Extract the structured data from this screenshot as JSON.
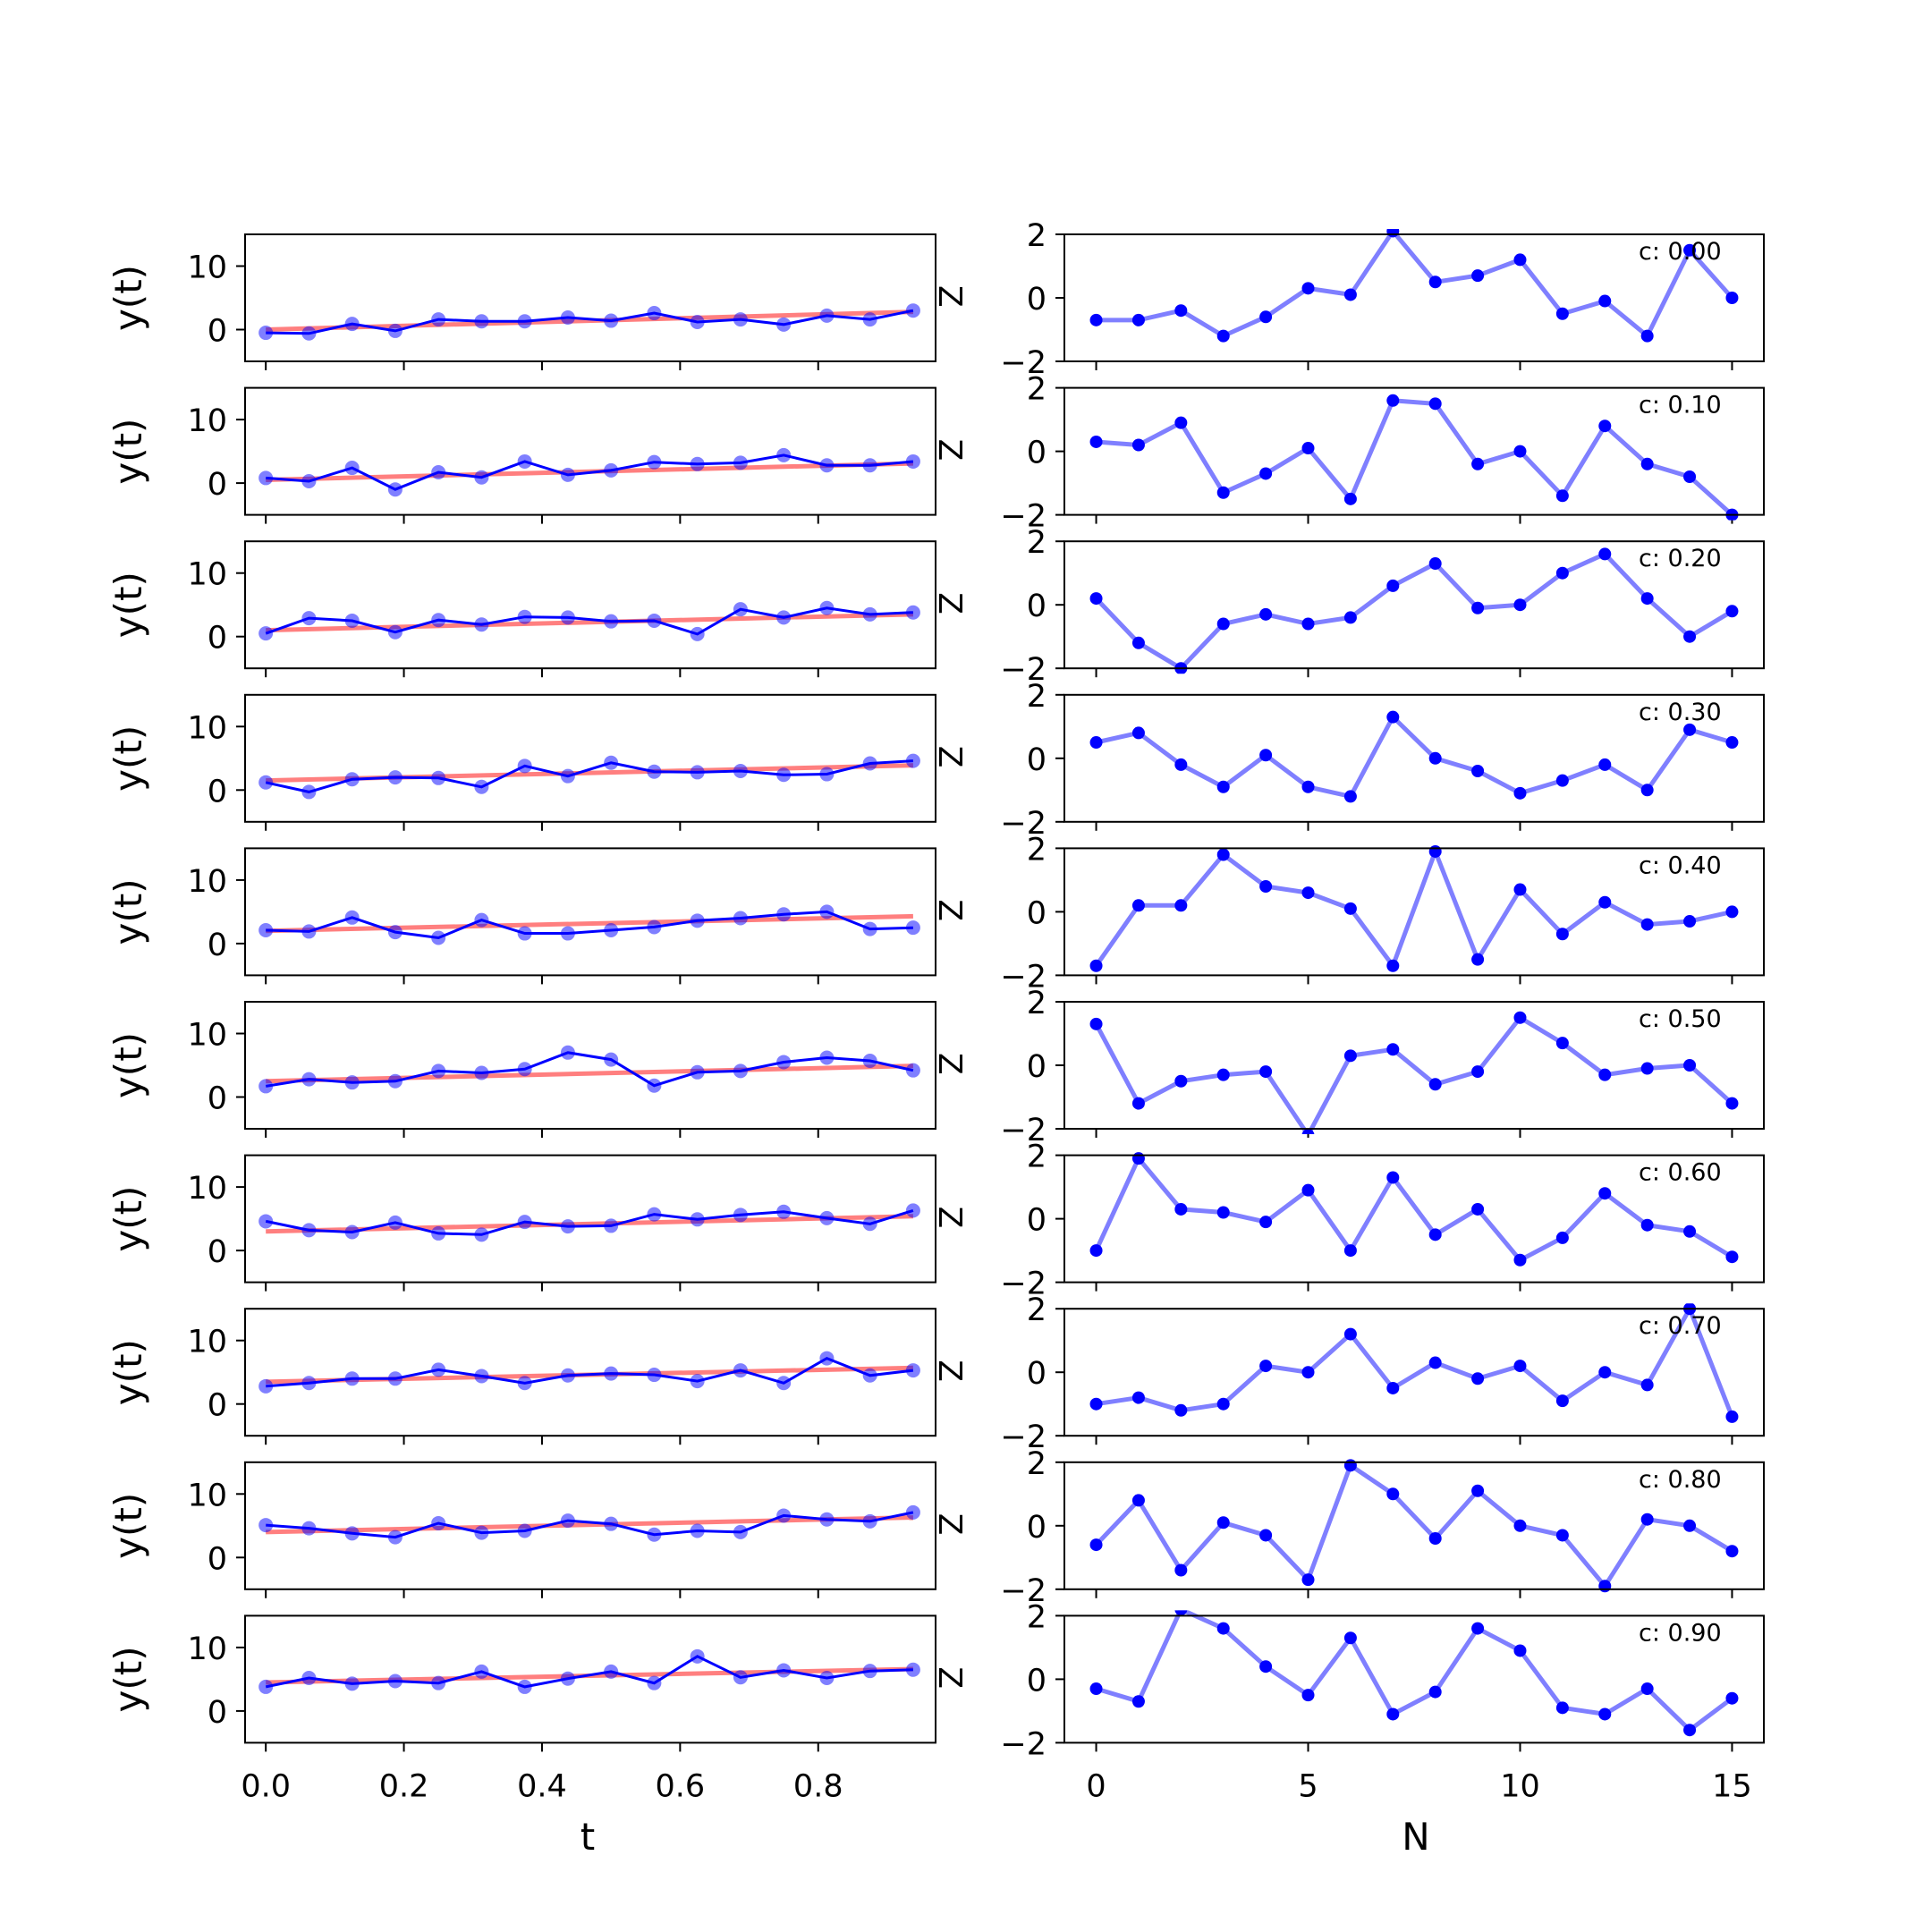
{
  "chart_data": [
    {
      "panel": "left-column",
      "type": "line",
      "xlabel": "t",
      "ylabel": "y(t)",
      "xlim": [
        -0.03,
        0.97
      ],
      "ylim": [
        -5,
        15
      ],
      "xticks": [
        0.0,
        0.2,
        0.4,
        0.6,
        0.8
      ],
      "xtick_labels": [
        "0.0",
        "0.2",
        "0.4",
        "0.6",
        "0.8"
      ],
      "yticks": [
        0,
        10
      ],
      "ytick_labels": [
        "0",
        "10"
      ],
      "x": [
        0.0,
        0.0625,
        0.125,
        0.1875,
        0.25,
        0.3125,
        0.375,
        0.4375,
        0.5,
        0.5625,
        0.625,
        0.6875,
        0.75,
        0.8125,
        0.875,
        0.9375
      ],
      "colors": {
        "data": "#0000ff",
        "fit": "#ff0000"
      },
      "rows": [
        {
          "series": [
            {
              "name": "data",
              "values": [
                -0.5,
                -0.6,
                0.9,
                -0.2,
                1.6,
                1.3,
                1.3,
                1.9,
                1.4,
                2.6,
                1.2,
                1.6,
                0.8,
                2.2,
                1.6,
                3.0
              ]
            },
            {
              "name": "fit",
              "values": [
                0.0,
                2.8
              ]
            }
          ]
        },
        {
          "series": [
            {
              "name": "data",
              "values": [
                0.8,
                0.3,
                2.4,
                -1.0,
                1.7,
                0.9,
                3.4,
                1.3,
                2.0,
                3.3,
                3.0,
                3.2,
                4.4,
                2.8,
                2.8,
                3.4
              ]
            },
            {
              "name": "fit",
              "values": [
                0.5,
                3.1
              ]
            }
          ]
        },
        {
          "series": [
            {
              "name": "data",
              "values": [
                0.5,
                2.9,
                2.5,
                0.7,
                2.6,
                1.9,
                3.1,
                3.0,
                2.4,
                2.5,
                0.4,
                4.3,
                3.0,
                4.5,
                3.5,
                3.8
              ]
            },
            {
              "name": "fit",
              "values": [
                1.0,
                3.5
              ]
            }
          ]
        },
        {
          "series": [
            {
              "name": "data",
              "values": [
                1.2,
                -0.3,
                1.7,
                2.0,
                1.9,
                0.5,
                3.8,
                2.2,
                4.3,
                2.9,
                2.8,
                3.0,
                2.4,
                2.5,
                4.2,
                4.6
              ]
            },
            {
              "name": "fit",
              "values": [
                1.5,
                3.9
              ]
            }
          ]
        },
        {
          "series": [
            {
              "name": "data",
              "values": [
                2.1,
                1.9,
                4.1,
                1.8,
                0.9,
                3.7,
                1.6,
                1.6,
                2.1,
                2.6,
                3.6,
                4.0,
                4.6,
                5.0,
                2.3,
                2.5
              ]
            },
            {
              "name": "fit",
              "values": [
                2.0,
                4.3
              ]
            }
          ]
        },
        {
          "series": [
            {
              "name": "data",
              "values": [
                1.7,
                2.8,
                2.3,
                2.5,
                4.1,
                3.8,
                4.4,
                7.0,
                5.9,
                1.8,
                3.9,
                4.1,
                5.5,
                6.2,
                5.7,
                4.2
              ]
            },
            {
              "name": "fit",
              "values": [
                2.5,
                4.9
              ]
            }
          ]
        },
        {
          "series": [
            {
              "name": "data",
              "values": [
                4.6,
                3.2,
                2.9,
                4.4,
                2.7,
                2.5,
                4.5,
                3.8,
                3.9,
                5.7,
                4.9,
                5.6,
                6.1,
                5.1,
                4.2,
                6.3
              ]
            },
            {
              "name": "fit",
              "values": [
                3.0,
                5.4
              ]
            }
          ]
        },
        {
          "series": [
            {
              "name": "data",
              "values": [
                2.8,
                3.3,
                4.0,
                4.0,
                5.4,
                4.4,
                3.3,
                4.5,
                4.8,
                4.6,
                3.6,
                5.3,
                3.3,
                7.2,
                4.5,
                5.3
              ]
            },
            {
              "name": "fit",
              "values": [
                3.5,
                5.7
              ]
            }
          ]
        },
        {
          "series": [
            {
              "name": "data",
              "values": [
                5.1,
                4.6,
                3.8,
                3.2,
                5.4,
                3.9,
                4.2,
                5.8,
                5.3,
                3.6,
                4.2,
                4.0,
                6.6,
                6.0,
                5.7,
                7.1
              ]
            },
            {
              "name": "fit",
              "values": [
                4.0,
                6.3
              ]
            }
          ]
        },
        {
          "series": [
            {
              "name": "data",
              "values": [
                3.8,
                5.2,
                4.3,
                4.7,
                4.4,
                6.2,
                3.8,
                5.1,
                6.2,
                4.4,
                8.6,
                5.3,
                6.4,
                5.2,
                6.3,
                6.5
              ]
            },
            {
              "name": "fit",
              "values": [
                4.5,
                6.6
              ]
            }
          ]
        }
      ],
      "corner_text": "Z"
    },
    {
      "panel": "right-column",
      "type": "line",
      "xlabel": "N",
      "ylabel": "",
      "xlim": [
        -0.75,
        15.75
      ],
      "ylim": [
        -2,
        2
      ],
      "xticks": [
        0,
        5,
        10,
        15
      ],
      "xtick_labels": [
        "0",
        "5",
        "10",
        "15"
      ],
      "yticks": [
        -2,
        0,
        2
      ],
      "ytick_labels": [
        "−2",
        "0",
        "2"
      ],
      "x": [
        0,
        1,
        2,
        3,
        4,
        5,
        6,
        7,
        8,
        9,
        10,
        11,
        12,
        13,
        14,
        15
      ],
      "colors": {
        "line": "#0000ff"
      },
      "rows": [
        {
          "annotation": "c: 0.00",
          "values": [
            -0.7,
            -0.7,
            -0.4,
            -1.2,
            -0.6,
            0.3,
            0.1,
            2.1,
            0.5,
            0.7,
            1.2,
            -0.5,
            -0.1,
            -1.2,
            1.5,
            0.0
          ]
        },
        {
          "annotation": "c: 0.10",
          "values": [
            0.3,
            0.2,
            0.9,
            -1.3,
            -0.7,
            0.1,
            -1.5,
            1.6,
            1.5,
            -0.4,
            0.0,
            -1.4,
            0.8,
            -0.4,
            -0.8,
            -2.0
          ]
        },
        {
          "annotation": "c: 0.20",
          "values": [
            0.2,
            -1.2,
            -2.0,
            -0.6,
            -0.3,
            -0.6,
            -0.4,
            0.6,
            1.3,
            -0.1,
            0.0,
            1.0,
            1.6,
            0.2,
            -1.0,
            -0.2
          ]
        },
        {
          "annotation": "c: 0.30",
          "values": [
            0.5,
            0.8,
            -0.2,
            -0.9,
            0.1,
            -0.9,
            -1.2,
            1.3,
            0.0,
            -0.4,
            -1.1,
            -0.7,
            -0.2,
            -1.0,
            0.9,
            0.5
          ]
        },
        {
          "annotation": "c: 0.40",
          "values": [
            -1.7,
            0.2,
            0.2,
            1.8,
            0.8,
            0.6,
            0.1,
            -1.7,
            1.9,
            -1.5,
            0.7,
            -0.7,
            0.3,
            -0.4,
            -0.3,
            0.0
          ]
        },
        {
          "annotation": "c: 0.50",
          "values": [
            1.3,
            -1.2,
            -0.5,
            -0.3,
            -0.2,
            -2.2,
            0.3,
            0.5,
            -0.6,
            -0.2,
            1.5,
            0.7,
            -0.3,
            -0.1,
            0.0,
            -1.2
          ]
        },
        {
          "annotation": "c: 0.60",
          "values": [
            -1.0,
            1.9,
            0.3,
            0.2,
            -0.1,
            0.9,
            -1.0,
            1.3,
            -0.5,
            0.3,
            -1.3,
            -0.6,
            0.8,
            -0.2,
            -0.4,
            -1.2
          ]
        },
        {
          "annotation": "c: 0.70",
          "values": [
            -1.0,
            -0.8,
            -1.2,
            -1.0,
            0.2,
            0.0,
            1.2,
            -0.5,
            0.3,
            -0.2,
            0.2,
            -0.9,
            0.0,
            -0.4,
            2.0,
            -1.4
          ]
        },
        {
          "annotation": "c: 0.80",
          "values": [
            -0.6,
            0.8,
            -1.4,
            0.1,
            -0.3,
            -1.7,
            1.9,
            1.0,
            -0.4,
            1.1,
            0.0,
            -0.3,
            -1.9,
            0.2,
            0.0,
            -0.8
          ]
        },
        {
          "annotation": "c: 0.90",
          "values": [
            -0.3,
            -0.7,
            2.2,
            1.6,
            0.4,
            -0.5,
            1.3,
            -1.1,
            -0.4,
            1.6,
            0.9,
            -0.9,
            -1.1,
            -0.3,
            -1.6,
            -0.6
          ]
        }
      ]
    }
  ]
}
